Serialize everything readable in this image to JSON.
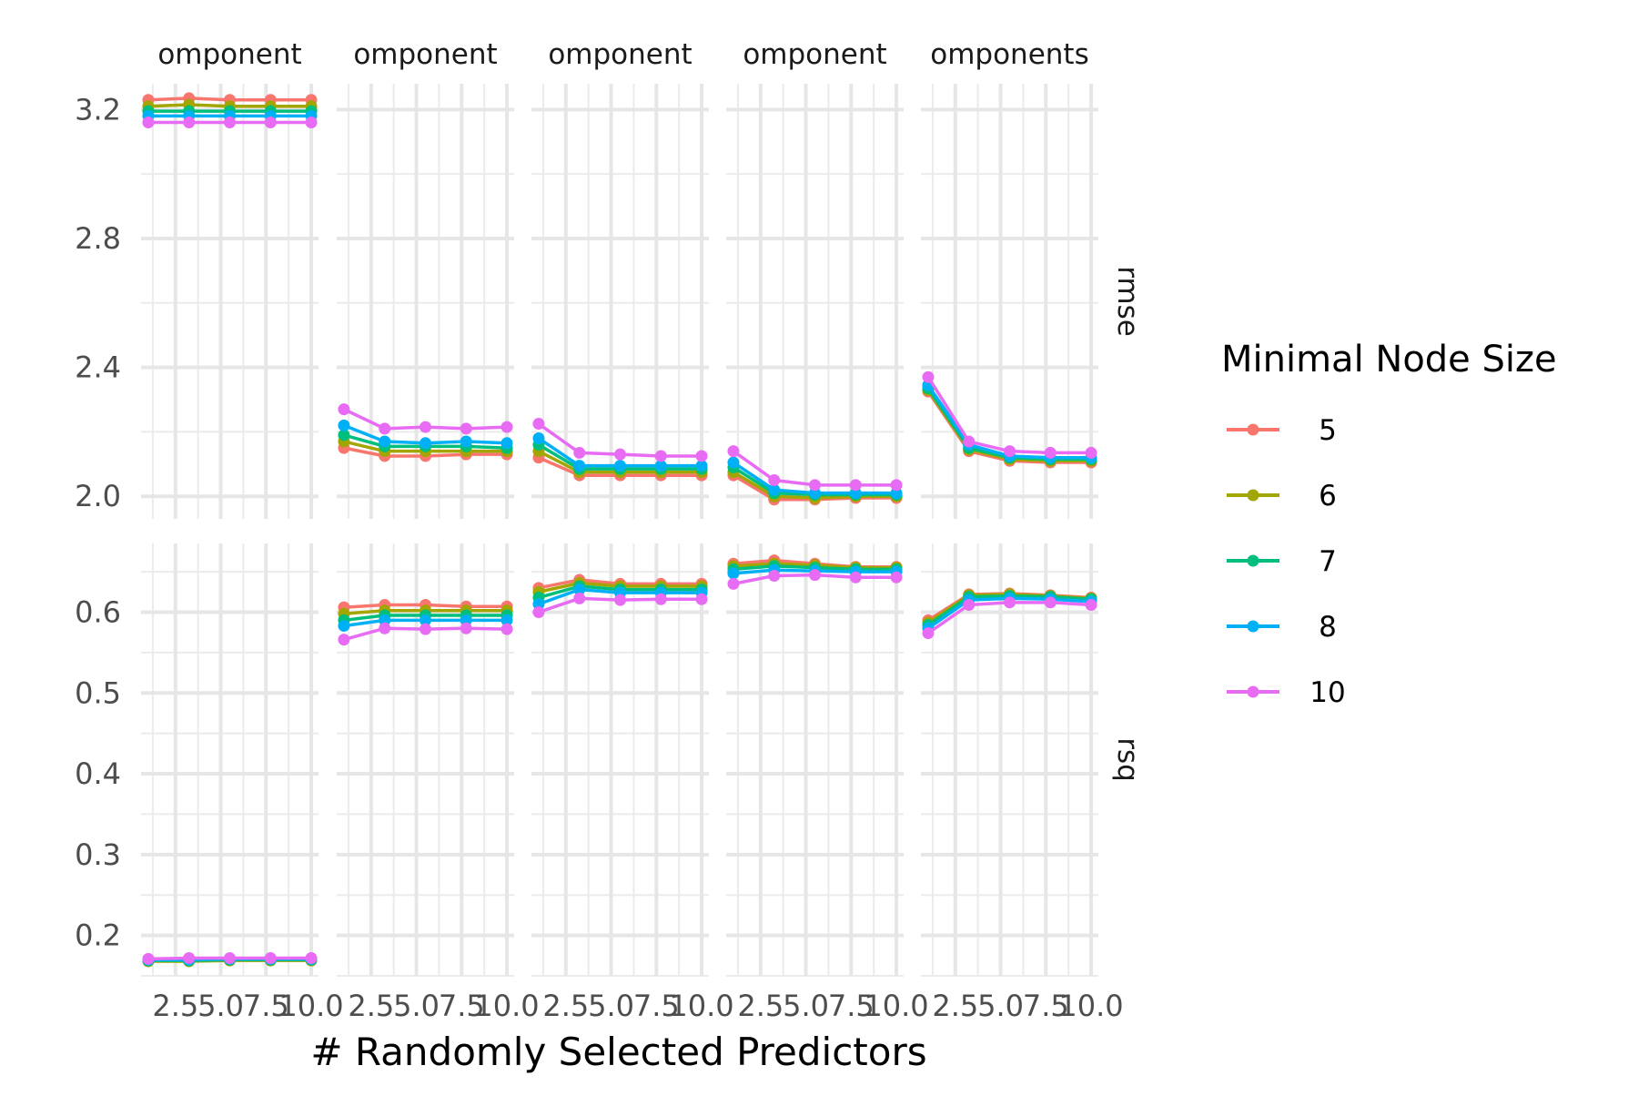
{
  "chart_data": {
    "type": "line",
    "xlabel": "# Randomly Selected Predictors",
    "facet_columns": [
      "omponent",
      "omponent",
      "omponent",
      "omponent",
      "omponents"
    ],
    "facet_rows": [
      "rmse",
      "rsq"
    ],
    "x": [
      1,
      3.25,
      5.5,
      7.75,
      10
    ],
    "x_ticks": [
      "2.5",
      "5.0",
      "7.5",
      "10.0"
    ],
    "x_tick_values": [
      2.5,
      5,
      7.5,
      10
    ],
    "xlim": [
      0.6,
      10.4
    ],
    "rows": [
      {
        "name": "rmse",
        "ylim": [
          1.93,
          3.28
        ],
        "y_ticks": [
          "2.0",
          "2.4",
          "2.8",
          "3.2"
        ],
        "y_tick_values": [
          2.0,
          2.4,
          2.8,
          3.2
        ]
      },
      {
        "name": "rsq",
        "ylim": [
          0.15,
          0.685
        ],
        "y_ticks": [
          "0.2",
          "0.3",
          "0.4",
          "0.5",
          "0.6"
        ],
        "y_tick_values": [
          0.2,
          0.3,
          0.4,
          0.5,
          0.6
        ]
      }
    ],
    "legend": {
      "title": "Minimal Node Size",
      "placement": "right",
      "entries": [
        {
          "label": "5",
          "color": "#F8766D"
        },
        {
          "label": "6",
          "color": "#A3A500"
        },
        {
          "label": "7",
          "color": "#00BF7D"
        },
        {
          "label": "8",
          "color": "#00B0F6"
        },
        {
          "label": "10",
          "color": "#E76BF3"
        }
      ]
    },
    "series": [
      {
        "row": 0,
        "col": 0,
        "node": "5",
        "values": [
          3.23,
          3.235,
          3.23,
          3.23,
          3.23
        ]
      },
      {
        "row": 0,
        "col": 0,
        "node": "6",
        "values": [
          3.21,
          3.215,
          3.21,
          3.21,
          3.21
        ]
      },
      {
        "row": 0,
        "col": 0,
        "node": "7",
        "values": [
          3.195,
          3.195,
          3.195,
          3.195,
          3.195
        ]
      },
      {
        "row": 0,
        "col": 0,
        "node": "8",
        "values": [
          3.18,
          3.18,
          3.18,
          3.18,
          3.18
        ]
      },
      {
        "row": 0,
        "col": 0,
        "node": "10",
        "values": [
          3.16,
          3.16,
          3.16,
          3.16,
          3.16
        ]
      },
      {
        "row": 0,
        "col": 1,
        "node": "5",
        "values": [
          2.15,
          2.125,
          2.125,
          2.13,
          2.13
        ]
      },
      {
        "row": 0,
        "col": 1,
        "node": "6",
        "values": [
          2.17,
          2.14,
          2.14,
          2.14,
          2.14
        ]
      },
      {
        "row": 0,
        "col": 1,
        "node": "7",
        "values": [
          2.19,
          2.155,
          2.155,
          2.155,
          2.15
        ]
      },
      {
        "row": 0,
        "col": 1,
        "node": "8",
        "values": [
          2.22,
          2.17,
          2.165,
          2.17,
          2.165
        ]
      },
      {
        "row": 0,
        "col": 1,
        "node": "10",
        "values": [
          2.27,
          2.21,
          2.215,
          2.21,
          2.215
        ]
      },
      {
        "row": 0,
        "col": 2,
        "node": "5",
        "values": [
          2.12,
          2.065,
          2.065,
          2.065,
          2.065
        ]
      },
      {
        "row": 0,
        "col": 2,
        "node": "6",
        "values": [
          2.14,
          2.075,
          2.075,
          2.075,
          2.075
        ]
      },
      {
        "row": 0,
        "col": 2,
        "node": "7",
        "values": [
          2.16,
          2.085,
          2.085,
          2.085,
          2.085
        ]
      },
      {
        "row": 0,
        "col": 2,
        "node": "8",
        "values": [
          2.18,
          2.095,
          2.095,
          2.095,
          2.095
        ]
      },
      {
        "row": 0,
        "col": 2,
        "node": "10",
        "values": [
          2.225,
          2.135,
          2.13,
          2.125,
          2.125
        ]
      },
      {
        "row": 0,
        "col": 3,
        "node": "5",
        "values": [
          2.065,
          1.99,
          1.99,
          1.995,
          1.995
        ]
      },
      {
        "row": 0,
        "col": 3,
        "node": "6",
        "values": [
          2.075,
          2.0,
          1.995,
          2.0,
          2.0
        ]
      },
      {
        "row": 0,
        "col": 3,
        "node": "7",
        "values": [
          2.09,
          2.01,
          2.005,
          2.005,
          2.005
        ]
      },
      {
        "row": 0,
        "col": 3,
        "node": "8",
        "values": [
          2.105,
          2.02,
          2.01,
          2.01,
          2.01
        ]
      },
      {
        "row": 0,
        "col": 3,
        "node": "10",
        "values": [
          2.14,
          2.05,
          2.035,
          2.035,
          2.035
        ]
      },
      {
        "row": 0,
        "col": 4,
        "node": "5",
        "values": [
          2.325,
          2.14,
          2.11,
          2.105,
          2.105
        ]
      },
      {
        "row": 0,
        "col": 4,
        "node": "6",
        "values": [
          2.33,
          2.145,
          2.115,
          2.11,
          2.11
        ]
      },
      {
        "row": 0,
        "col": 4,
        "node": "7",
        "values": [
          2.335,
          2.15,
          2.12,
          2.115,
          2.115
        ]
      },
      {
        "row": 0,
        "col": 4,
        "node": "8",
        "values": [
          2.345,
          2.16,
          2.125,
          2.12,
          2.12
        ]
      },
      {
        "row": 0,
        "col": 4,
        "node": "10",
        "values": [
          2.37,
          2.17,
          2.14,
          2.135,
          2.135
        ]
      },
      {
        "row": 1,
        "col": 0,
        "node": "5",
        "values": [
          0.169,
          0.169,
          0.17,
          0.17,
          0.17
        ]
      },
      {
        "row": 1,
        "col": 0,
        "node": "6",
        "values": [
          0.168,
          0.168,
          0.169,
          0.169,
          0.169
        ]
      },
      {
        "row": 1,
        "col": 0,
        "node": "7",
        "values": [
          0.169,
          0.169,
          0.17,
          0.17,
          0.17
        ]
      },
      {
        "row": 1,
        "col": 0,
        "node": "8",
        "values": [
          0.17,
          0.17,
          0.171,
          0.171,
          0.171
        ]
      },
      {
        "row": 1,
        "col": 0,
        "node": "10",
        "values": [
          0.171,
          0.172,
          0.172,
          0.172,
          0.172
        ]
      },
      {
        "row": 1,
        "col": 1,
        "node": "5",
        "values": [
          0.606,
          0.609,
          0.609,
          0.607,
          0.607
        ]
      },
      {
        "row": 1,
        "col": 1,
        "node": "6",
        "values": [
          0.598,
          0.602,
          0.602,
          0.602,
          0.602
        ]
      },
      {
        "row": 1,
        "col": 1,
        "node": "7",
        "values": [
          0.59,
          0.596,
          0.596,
          0.596,
          0.596
        ]
      },
      {
        "row": 1,
        "col": 1,
        "node": "8",
        "values": [
          0.583,
          0.59,
          0.59,
          0.59,
          0.59
        ]
      },
      {
        "row": 1,
        "col": 1,
        "node": "10",
        "values": [
          0.566,
          0.58,
          0.579,
          0.58,
          0.579
        ]
      },
      {
        "row": 1,
        "col": 2,
        "node": "5",
        "values": [
          0.63,
          0.64,
          0.635,
          0.635,
          0.635
        ]
      },
      {
        "row": 1,
        "col": 2,
        "node": "6",
        "values": [
          0.625,
          0.636,
          0.632,
          0.632,
          0.632
        ]
      },
      {
        "row": 1,
        "col": 2,
        "node": "7",
        "values": [
          0.618,
          0.632,
          0.628,
          0.628,
          0.628
        ]
      },
      {
        "row": 1,
        "col": 2,
        "node": "8",
        "values": [
          0.61,
          0.628,
          0.624,
          0.624,
          0.624
        ]
      },
      {
        "row": 1,
        "col": 2,
        "node": "10",
        "values": [
          0.6,
          0.617,
          0.615,
          0.616,
          0.616
        ]
      },
      {
        "row": 1,
        "col": 3,
        "node": "5",
        "values": [
          0.66,
          0.664,
          0.66,
          0.656,
          0.656
        ]
      },
      {
        "row": 1,
        "col": 3,
        "node": "6",
        "values": [
          0.657,
          0.66,
          0.658,
          0.655,
          0.655
        ]
      },
      {
        "row": 1,
        "col": 3,
        "node": "7",
        "values": [
          0.653,
          0.657,
          0.655,
          0.653,
          0.653
        ]
      },
      {
        "row": 1,
        "col": 3,
        "node": "8",
        "values": [
          0.648,
          0.652,
          0.651,
          0.65,
          0.65
        ]
      },
      {
        "row": 1,
        "col": 3,
        "node": "10",
        "values": [
          0.635,
          0.645,
          0.646,
          0.643,
          0.643
        ]
      },
      {
        "row": 1,
        "col": 4,
        "node": "5",
        "values": [
          0.59,
          0.622,
          0.623,
          0.621,
          0.618
        ]
      },
      {
        "row": 1,
        "col": 4,
        "node": "6",
        "values": [
          0.587,
          0.621,
          0.622,
          0.62,
          0.617
        ]
      },
      {
        "row": 1,
        "col": 4,
        "node": "7",
        "values": [
          0.584,
          0.619,
          0.62,
          0.619,
          0.616
        ]
      },
      {
        "row": 1,
        "col": 4,
        "node": "8",
        "values": [
          0.58,
          0.615,
          0.617,
          0.616,
          0.613
        ]
      },
      {
        "row": 1,
        "col": 4,
        "node": "10",
        "values": [
          0.574,
          0.609,
          0.612,
          0.612,
          0.609
        ]
      }
    ]
  }
}
